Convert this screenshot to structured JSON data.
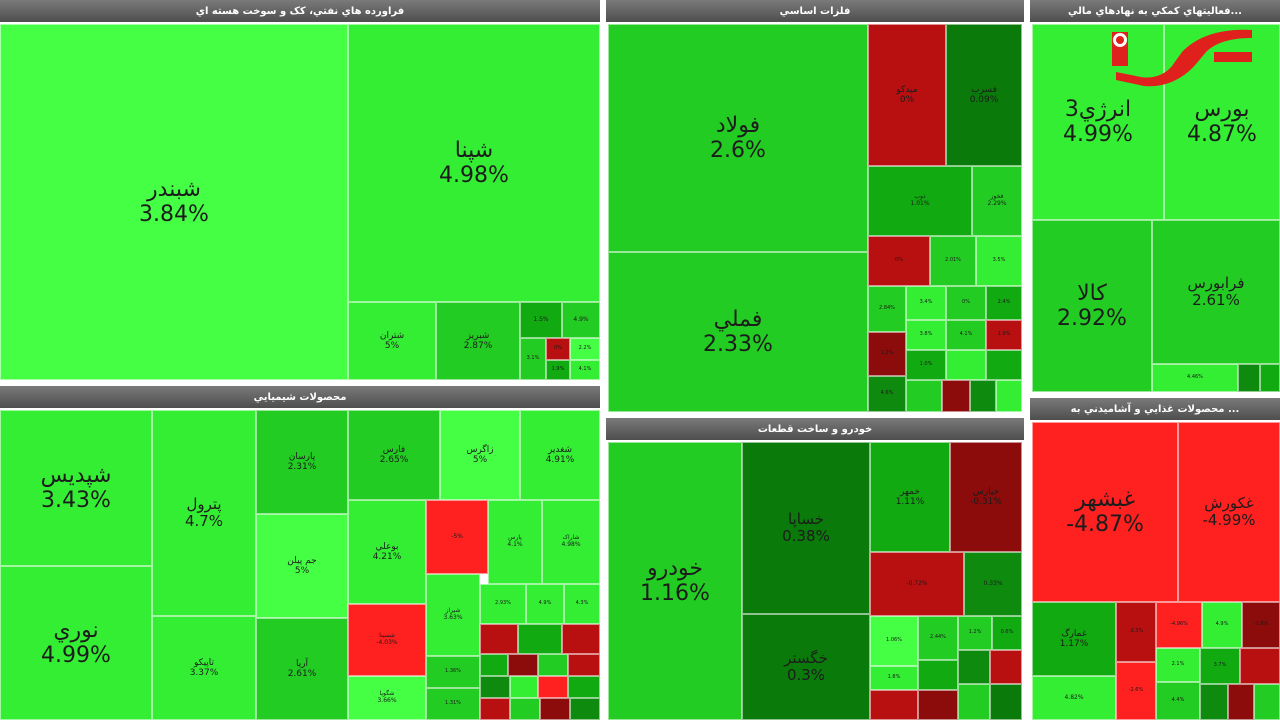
{
  "panels": {
    "oil": {
      "title": "فراورده هاي نفتي، کک و سوخت هسته اي",
      "cells": [
        {
          "name": "شبندر",
          "pct": "3.84%"
        },
        {
          "name": "شپنا",
          "pct": "4.98%"
        },
        {
          "name": "شتران",
          "pct": "5%"
        },
        {
          "name": "شبریز",
          "pct": "2.87%"
        },
        {
          "name": "",
          "pct": "1.5%"
        },
        {
          "name": "",
          "pct": "4.9%"
        },
        {
          "name": "",
          "pct": "3.1%"
        },
        {
          "name": "",
          "pct": "0%"
        },
        {
          "name": "",
          "pct": "2.2%"
        },
        {
          "name": "",
          "pct": "1.9%"
        },
        {
          "name": "",
          "pct": "4.1%"
        }
      ]
    },
    "chem": {
      "title": "محصولات شيميايي",
      "cells": [
        {
          "name": "شپدیس",
          "pct": "3.43%"
        },
        {
          "name": "نوري",
          "pct": "4.99%"
        },
        {
          "name": "پترول",
          "pct": "4.7%"
        },
        {
          "name": "تاپیکو",
          "pct": "3.37%"
        },
        {
          "name": "پارسان",
          "pct": "2.31%"
        },
        {
          "name": "جم پیلن",
          "pct": "5%"
        },
        {
          "name": "آریا",
          "pct": "2.61%"
        },
        {
          "name": "فارس",
          "pct": "2.65%"
        },
        {
          "name": "زاگرس",
          "pct": "5%"
        },
        {
          "name": "شغدیر",
          "pct": "4.91%"
        },
        {
          "name": "بوعلي",
          "pct": "4.21%"
        },
        {
          "name": "",
          "pct": "-5%"
        },
        {
          "name": "پارس",
          "pct": "4.1%"
        },
        {
          "name": "شاراک",
          "pct": "4.98%"
        },
        {
          "name": "شسینا",
          "pct": "-4.03%"
        },
        {
          "name": "شیراز",
          "pct": "3.63%"
        },
        {
          "name": "شگویا",
          "pct": "3.66%"
        },
        {
          "name": "",
          "pct": "2.93%"
        },
        {
          "name": "",
          "pct": "4.9%"
        },
        {
          "name": "",
          "pct": "4.3%"
        },
        {
          "name": "",
          "pct": "1.36%"
        },
        {
          "name": "",
          "pct": "1.31%"
        }
      ]
    },
    "metals": {
      "title": "فلزات اساسي",
      "cells": [
        {
          "name": "فولاد",
          "pct": "2.6%"
        },
        {
          "name": "فملي",
          "pct": "2.33%"
        },
        {
          "name": "میدکو",
          "pct": "0%"
        },
        {
          "name": "فسرب",
          "pct": "0.09%"
        },
        {
          "name": "ذوب",
          "pct": "1.01%"
        },
        {
          "name": "فخوز",
          "pct": "2.29%"
        },
        {
          "name": "",
          "pct": "0%"
        },
        {
          "name": "",
          "pct": "2.01%"
        },
        {
          "name": "",
          "pct": "3.5%"
        },
        {
          "name": "",
          "pct": "2.84%"
        },
        {
          "name": "",
          "pct": "3.4%"
        },
        {
          "name": "",
          "pct": "0%"
        },
        {
          "name": "",
          "pct": "2.4%"
        },
        {
          "name": "",
          "pct": "1.2%"
        },
        {
          "name": "",
          "pct": "3.8%"
        },
        {
          "name": "",
          "pct": "4.1%"
        },
        {
          "name": "",
          "pct": "1.9%"
        },
        {
          "name": "",
          "pct": "4.6%"
        },
        {
          "name": "",
          "pct": "1.0%"
        }
      ]
    },
    "auto": {
      "title": "خودرو و ساخت قطعات",
      "cells": [
        {
          "name": "خودرو",
          "pct": "1.16%"
        },
        {
          "name": "خساپا",
          "pct": "0.38%"
        },
        {
          "name": "خگستر",
          "pct": "0.3%"
        },
        {
          "name": "خمهر",
          "pct": "1.11%"
        },
        {
          "name": "خپارس",
          "pct": "-0.31%"
        },
        {
          "name": "",
          "pct": "-0.72%"
        },
        {
          "name": "",
          "pct": "0.33%"
        },
        {
          "name": "",
          "pct": "1.06%"
        },
        {
          "name": "",
          "pct": "2.44%"
        },
        {
          "name": "",
          "pct": "1.2%"
        },
        {
          "name": "",
          "pct": "0.6%"
        },
        {
          "name": "",
          "pct": "1.8%"
        }
      ]
    },
    "fin": {
      "title": "...فعاليتهاي کمکي به نهادهاي مالي",
      "cells": [
        {
          "name": "انرژي3",
          "pct": "4.99%"
        },
        {
          "name": "بورس",
          "pct": "4.87%"
        },
        {
          "name": "کالا",
          "pct": "2.92%"
        },
        {
          "name": "فرابورس",
          "pct": "2.61%"
        },
        {
          "name": "",
          "pct": "4.46%"
        }
      ]
    },
    "food": {
      "title": "... محصولات غذايي و آشاميدني به",
      "cells": [
        {
          "name": "غبشهر",
          "pct": "-4.87%"
        },
        {
          "name": "غکورش",
          "pct": "-4.99%"
        },
        {
          "name": "غمارگ",
          "pct": "1.17%"
        },
        {
          "name": "",
          "pct": "4.82%"
        },
        {
          "name": "",
          "pct": "-3.3%"
        },
        {
          "name": "",
          "pct": "-4.96%"
        },
        {
          "name": "",
          "pct": "4.9%"
        },
        {
          "name": "",
          "pct": "-1.8%"
        },
        {
          "name": "",
          "pct": "2.1%"
        },
        {
          "name": "",
          "pct": "4.4%"
        },
        {
          "name": "",
          "pct": "-2.6%"
        },
        {
          "name": "",
          "pct": "3.7%"
        }
      ]
    }
  },
  "logo": {
    "label": "رکنا",
    "color": "#e0201c"
  }
}
